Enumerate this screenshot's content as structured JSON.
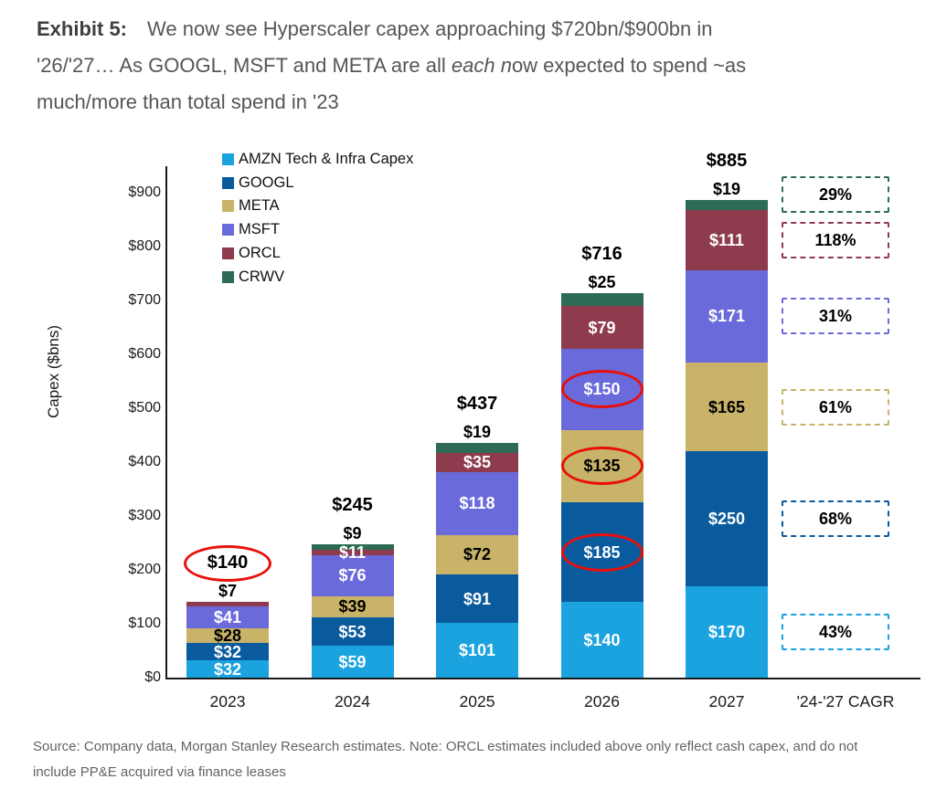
{
  "header": {
    "exhibit_label": "Exhibit 5:",
    "line1": "We now see Hyperscaler capex approaching $720bn/$900bn in",
    "line2_pre": "'26/'27… As GOOGL, MSFT and META are all ",
    "line2_italic": "each n",
    "line2_post": "ow expected to spend ~as",
    "line3": "much/more than total spend in '23"
  },
  "chart_data": {
    "type": "bar",
    "stacked": true,
    "title": "",
    "xlabel": "",
    "ylabel": "Capex ($bns)",
    "ylim": [
      0,
      900
    ],
    "ytick_step": 100,
    "ytick_prefix": "$",
    "grid": false,
    "legend_position": "top-left-inside",
    "categories": [
      "2023",
      "2024",
      "2025",
      "2026",
      "2027"
    ],
    "extra_category": "'24-'27 CAGR",
    "series": [
      {
        "name": "AMZN Tech & Infra Capex",
        "color": "#1BA3DF",
        "label_color": "#ffffff",
        "values": [
          32,
          59,
          101,
          140,
          170
        ],
        "cagr": "43%"
      },
      {
        "name": "GOOGL",
        "color": "#0A5B9E",
        "label_color": "#ffffff",
        "values": [
          32,
          53,
          91,
          185,
          250
        ],
        "cagr": "68%"
      },
      {
        "name": "META",
        "color": "#C9B368",
        "label_color": "#000000",
        "values": [
          28,
          39,
          72,
          135,
          165
        ],
        "cagr": "61%"
      },
      {
        "name": "MSFT",
        "color": "#6B6ADB",
        "label_color": "#ffffff",
        "values": [
          41,
          76,
          118,
          150,
          171
        ],
        "cagr": "31%"
      },
      {
        "name": "ORCL",
        "color": "#8E3B4E",
        "label_color": "#ffffff",
        "values": [
          7,
          11,
          35,
          79,
          111
        ],
        "cagr": "118%"
      },
      {
        "name": "CRWV",
        "color": "#2E6B55",
        "label_color": "#000000",
        "values": [
          0,
          9,
          19,
          25,
          19
        ],
        "cagr": "29%"
      }
    ],
    "totals": [
      140,
      245,
      437,
      716,
      885
    ],
    "annotations": {
      "circle_color": "#E8100C",
      "circled_total_category": "2023",
      "circled_segments": [
        {
          "category": "2026",
          "series": "GOOGL"
        },
        {
          "category": "2026",
          "series": "META"
        },
        {
          "category": "2026",
          "series": "MSFT"
        }
      ]
    }
  },
  "footer": {
    "source_line1": "Source: Company data, Morgan Stanley Research estimates. Note: ORCL estimates included above only reflect cash capex, and do not",
    "source_line2": "include PP&E acquired via finance leases"
  }
}
